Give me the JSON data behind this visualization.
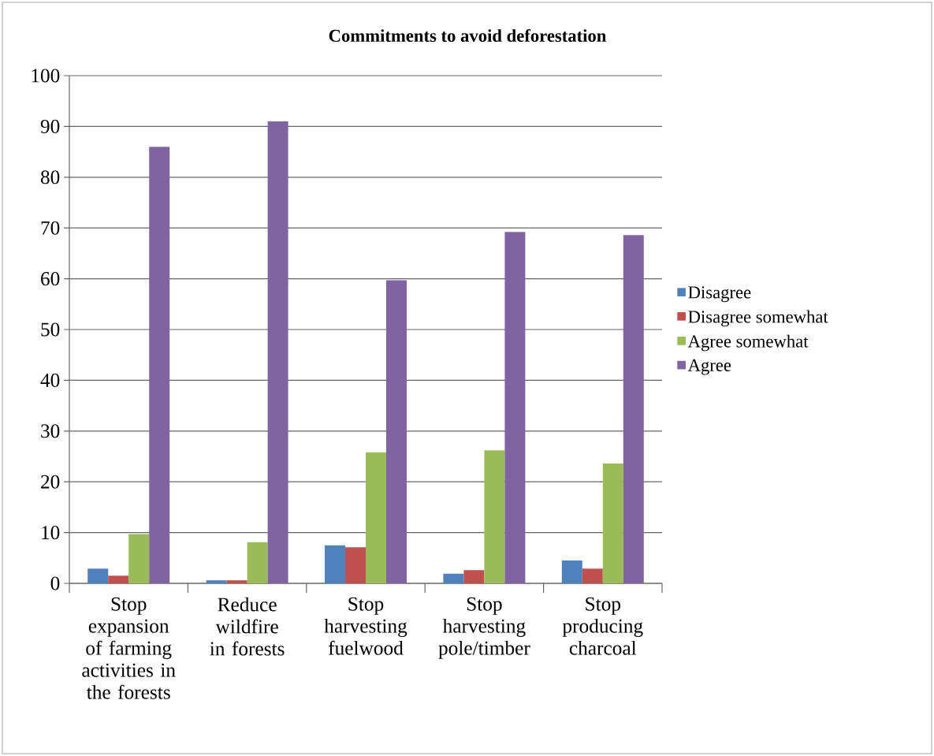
{
  "chart_data": {
    "type": "bar",
    "title": "Commitments to avoid deforestation",
    "categories": [
      "Stop expansion of farming activities in the forests",
      "Reduce wildfire in forests",
      "Stop harvesting fuelwood",
      "Stop harvesting pole/timber",
      "Stop producing charcoal"
    ],
    "series": [
      {
        "name": "Disagree",
        "color": "#4f81bd",
        "values": [
          2.9,
          0.6,
          7.5,
          1.9,
          4.5
        ]
      },
      {
        "name": "Disagree somewhat",
        "color": "#c0504d",
        "values": [
          1.5,
          0.6,
          7.1,
          2.6,
          2.9
        ]
      },
      {
        "name": "Agree somewhat",
        "color": "#9bbb59",
        "values": [
          9.7,
          8.1,
          25.8,
          26.2,
          23.6
        ]
      },
      {
        "name": "Agree",
        "color": "#8064a2",
        "values": [
          86,
          91,
          59.7,
          69.2,
          68.6
        ]
      }
    ],
    "ylim": [
      0,
      100
    ],
    "yticks": [
      0,
      10,
      20,
      30,
      40,
      50,
      60,
      70,
      80,
      90,
      100
    ],
    "grid": "y",
    "legend": "right"
  }
}
